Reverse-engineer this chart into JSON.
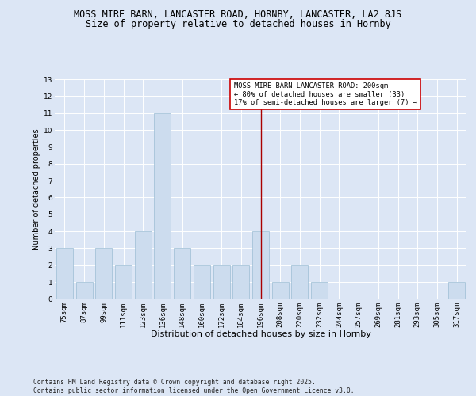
{
  "title": "MOSS MIRE BARN, LANCASTER ROAD, HORNBY, LANCASTER, LA2 8JS",
  "subtitle": "Size of property relative to detached houses in Hornby",
  "xlabel": "Distribution of detached houses by size in Hornby",
  "ylabel": "Number of detached properties",
  "categories": [
    "75sqm",
    "87sqm",
    "99sqm",
    "111sqm",
    "123sqm",
    "136sqm",
    "148sqm",
    "160sqm",
    "172sqm",
    "184sqm",
    "196sqm",
    "208sqm",
    "220sqm",
    "232sqm",
    "244sqm",
    "257sqm",
    "269sqm",
    "281sqm",
    "293sqm",
    "305sqm",
    "317sqm"
  ],
  "values": [
    3,
    1,
    3,
    2,
    4,
    11,
    3,
    2,
    2,
    2,
    4,
    1,
    2,
    1,
    0,
    0,
    0,
    0,
    0,
    0,
    1
  ],
  "bar_color": "#ccdcee",
  "bar_edgecolor": "#9bbdd4",
  "bar_linewidth": 0.5,
  "ylim": [
    0,
    13
  ],
  "yticks": [
    0,
    1,
    2,
    3,
    4,
    5,
    6,
    7,
    8,
    9,
    10,
    11,
    12,
    13
  ],
  "vline_x_index": 10,
  "vline_color": "#aa0000",
  "annotation_text": "MOSS MIRE BARN LANCASTER ROAD: 200sqm\n← 80% of detached houses are smaller (33)\n17% of semi-detached houses are larger (7) →",
  "background_color": "#dce6f5",
  "plot_bg_color": "#dce6f5",
  "footer_text": "Contains HM Land Registry data © Crown copyright and database right 2025.\nContains public sector information licensed under the Open Government Licence v3.0.",
  "title_fontsize": 8.5,
  "subtitle_fontsize": 8.5,
  "xlabel_fontsize": 8,
  "ylabel_fontsize": 7,
  "tick_fontsize": 6.5,
  "annotation_fontsize": 6.2,
  "footer_fontsize": 5.8
}
